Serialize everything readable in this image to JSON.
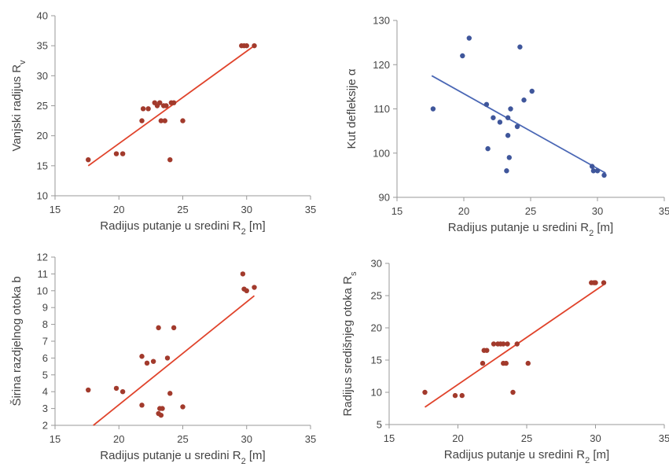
{
  "chart_data": [
    {
      "type": "scatter",
      "title": "",
      "xlabel": {
        "main": "Radijus putanje u sredini R",
        "sub": "2",
        "tail": " [m]"
      },
      "ylabel": {
        "main": "Vanjski radijus R",
        "sub": "v",
        "tail": ""
      },
      "xlim": [
        15,
        35
      ],
      "ylim": [
        10,
        40
      ],
      "xticks": [
        15,
        20,
        25,
        30,
        35
      ],
      "yticks": [
        10,
        15,
        20,
        25,
        30,
        35,
        40
      ],
      "grid": false,
      "marker_color": "#a23a2c",
      "line_color": "#e0432b",
      "trendline": {
        "x": [
          17.6,
          30.6
        ],
        "y": [
          15.0,
          35.0
        ]
      },
      "series": [
        {
          "x": [
            17.6,
            19.8,
            20.3,
            21.8,
            21.9,
            22.3,
            22.8,
            23.0,
            23.2,
            23.3,
            23.5,
            23.6,
            23.7,
            24.0,
            24.1,
            24.3,
            25.0,
            29.6,
            29.8,
            30.0,
            30.6
          ],
          "y": [
            16.0,
            17.0,
            17.0,
            22.5,
            24.5,
            24.5,
            25.5,
            25.0,
            25.5,
            22.5,
            25.0,
            22.5,
            25.0,
            16.0,
            25.5,
            25.5,
            22.5,
            35.0,
            35.0,
            35.0,
            35.0
          ]
        }
      ]
    },
    {
      "type": "scatter",
      "title": "",
      "xlabel": {
        "main": "Radijus putanje u sredini R",
        "sub": "2",
        "tail": " [m]"
      },
      "ylabel": {
        "main": "Kut defleksije α",
        "sub": "",
        "tail": ""
      },
      "xlim": [
        15,
        35
      ],
      "ylim": [
        90,
        130
      ],
      "xticks": [
        15,
        20,
        25,
        30,
        35
      ],
      "yticks": [
        90,
        100,
        110,
        120,
        130
      ],
      "grid": false,
      "marker_color": "#3f569b",
      "line_color": "#4a67b5",
      "trendline": {
        "x": [
          17.6,
          30.6
        ],
        "y": [
          117.5,
          95.5
        ]
      },
      "series": [
        {
          "x": [
            17.7,
            19.9,
            20.4,
            21.7,
            21.8,
            22.2,
            22.7,
            23.2,
            23.3,
            23.3,
            23.4,
            23.5,
            24.0,
            24.2,
            24.5,
            25.1,
            29.6,
            29.7,
            30.0,
            30.5
          ],
          "y": [
            110,
            122,
            126,
            111,
            101,
            108,
            107,
            96,
            104,
            108,
            99,
            110,
            106,
            124,
            112,
            114,
            97,
            96,
            96,
            95
          ]
        }
      ]
    },
    {
      "type": "scatter",
      "title": "",
      "xlabel": {
        "main": "Radijus putanje u sredini R",
        "sub": "2",
        "tail": " [m]"
      },
      "ylabel": {
        "main": "Širina razdjelnog otoka b",
        "sub": "",
        "tail": ""
      },
      "xlim": [
        15,
        35
      ],
      "ylim": [
        2,
        12
      ],
      "xticks": [
        15,
        20,
        25,
        30,
        35
      ],
      "yticks": [
        2,
        3,
        4,
        5,
        6,
        7,
        8,
        9,
        10,
        11,
        12
      ],
      "grid": false,
      "marker_color": "#a23a2c",
      "line_color": "#e0432b",
      "trendline": {
        "x": [
          18.0,
          30.6
        ],
        "y": [
          2.0,
          9.7
        ]
      },
      "series": [
        {
          "x": [
            17.6,
            19.8,
            20.3,
            21.8,
            21.8,
            22.2,
            22.7,
            23.1,
            23.1,
            23.2,
            23.3,
            23.4,
            23.8,
            24.0,
            24.3,
            25.0,
            29.7,
            29.8,
            30.0,
            30.6
          ],
          "y": [
            4.1,
            4.2,
            4.0,
            6.1,
            3.2,
            5.7,
            5.8,
            7.8,
            2.7,
            3.0,
            2.6,
            3.0,
            6.0,
            3.9,
            7.8,
            3.1,
            11.0,
            10.1,
            10.0,
            10.2
          ]
        }
      ]
    },
    {
      "type": "scatter",
      "title": "",
      "xlabel": {
        "main": "Radijus putanje u sredini R",
        "sub": "2",
        "tail": " [m]"
      },
      "ylabel": {
        "main": "Radijus središnjeg otoka R",
        "sub": "s",
        "tail": ""
      },
      "xlim": [
        15,
        35
      ],
      "ylim": [
        5,
        30
      ],
      "xticks": [
        15,
        20,
        25,
        30,
        35
      ],
      "yticks": [
        5,
        10,
        15,
        20,
        25,
        30
      ],
      "grid": false,
      "marker_color": "#a23a2c",
      "line_color": "#e0432b",
      "trendline": {
        "x": [
          17.6,
          30.6
        ],
        "y": [
          7.7,
          26.7
        ]
      },
      "series": [
        {
          "x": [
            17.6,
            19.8,
            20.3,
            21.8,
            21.9,
            22.1,
            22.6,
            22.9,
            23.1,
            23.3,
            23.3,
            23.5,
            23.6,
            24.0,
            24.3,
            25.1,
            29.7,
            29.9,
            30.0,
            30.6
          ],
          "y": [
            10.0,
            9.5,
            9.5,
            14.5,
            16.5,
            16.5,
            17.5,
            17.5,
            17.5,
            14.5,
            17.5,
            14.5,
            17.5,
            10.0,
            17.5,
            14.5,
            27.0,
            27.0,
            27.0,
            27.0
          ]
        }
      ]
    }
  ]
}
